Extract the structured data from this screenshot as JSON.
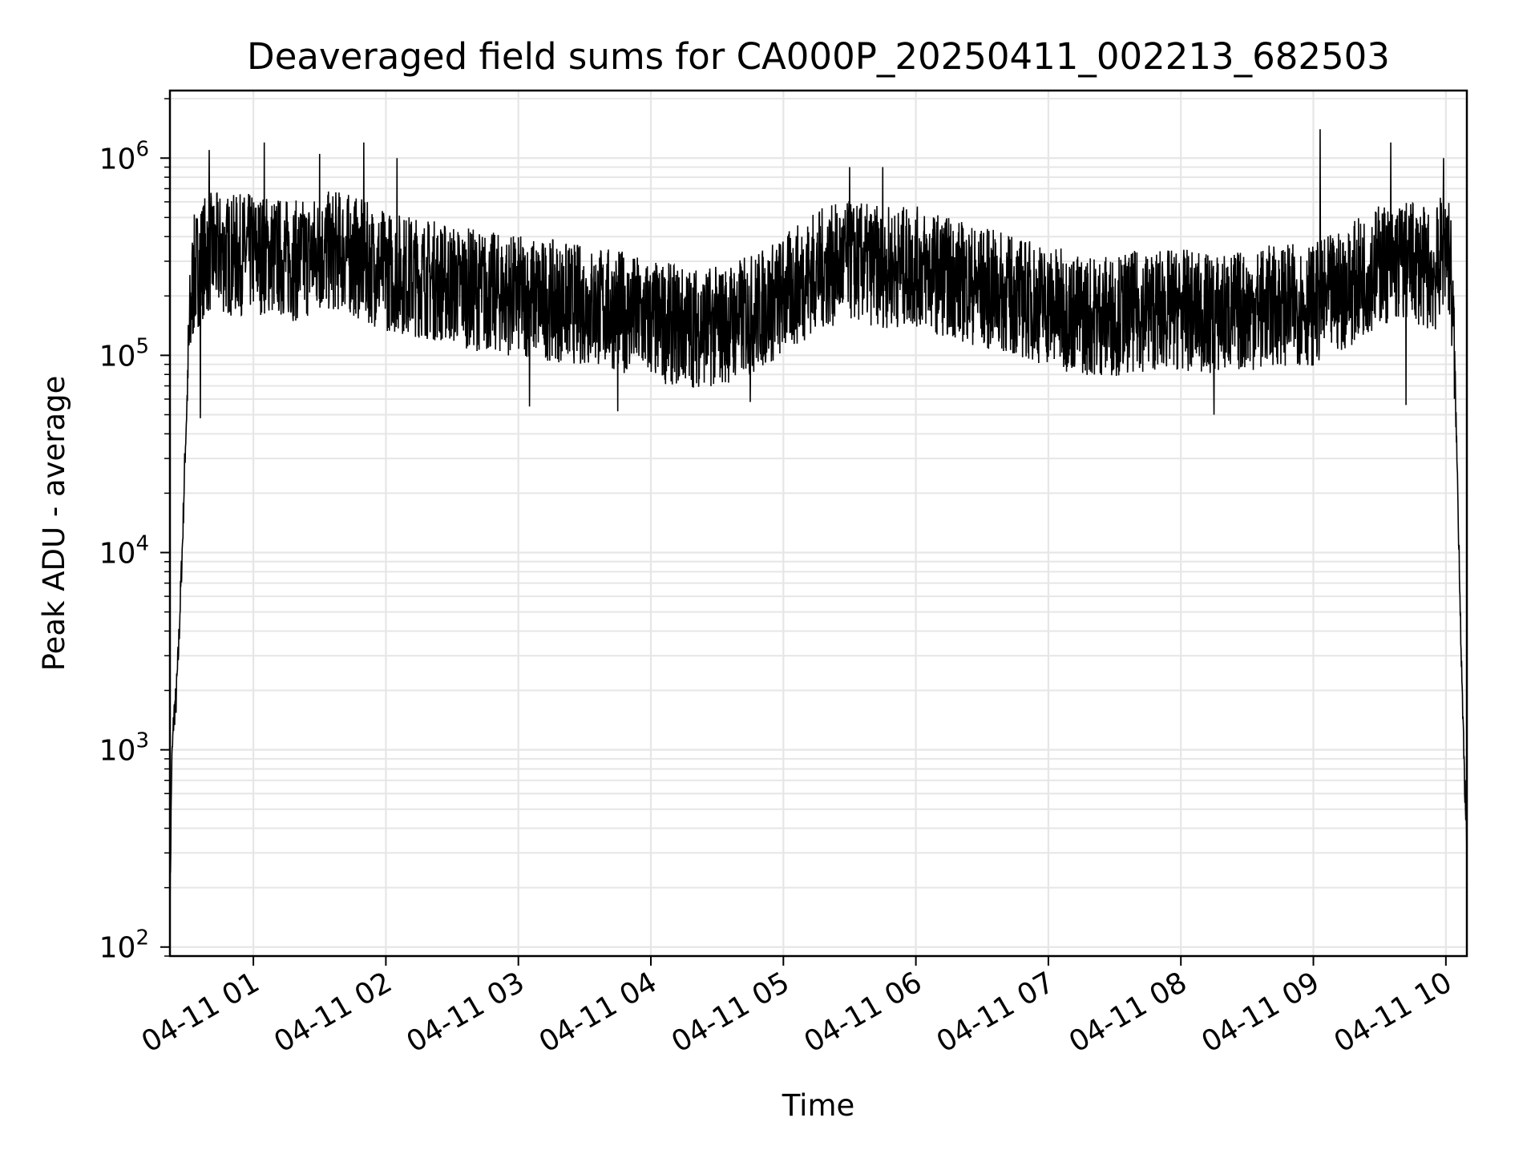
{
  "chart_data": {
    "type": "line",
    "title": "Deaveraged field sums for CA000P_20250411_002213_682503",
    "xlabel": "Time",
    "ylabel": "Peak ADU - average",
    "yscale": "log",
    "ylim": [
      90,
      2200000
    ],
    "xlim": [
      "2025-04-11T00:22:13",
      "2025-04-11T10:09:30"
    ],
    "grid": true,
    "x_ticks": [
      {
        "time": "2025-04-11T01:00:00",
        "label": "04-11 01"
      },
      {
        "time": "2025-04-11T02:00:00",
        "label": "04-11 02"
      },
      {
        "time": "2025-04-11T03:00:00",
        "label": "04-11 03"
      },
      {
        "time": "2025-04-11T04:00:00",
        "label": "04-11 04"
      },
      {
        "time": "2025-04-11T05:00:00",
        "label": "04-11 05"
      },
      {
        "time": "2025-04-11T06:00:00",
        "label": "04-11 06"
      },
      {
        "time": "2025-04-11T07:00:00",
        "label": "04-11 07"
      },
      {
        "time": "2025-04-11T08:00:00",
        "label": "04-11 08"
      },
      {
        "time": "2025-04-11T09:00:00",
        "label": "04-11 09"
      },
      {
        "time": "2025-04-11T10:00:00",
        "label": "04-11 10"
      }
    ],
    "y_ticks": [
      {
        "value": 100,
        "base": "10",
        "exp": "2"
      },
      {
        "value": 1000,
        "base": "10",
        "exp": "3"
      },
      {
        "value": 10000,
        "base": "10",
        "exp": "4"
      },
      {
        "value": 100000,
        "base": "10",
        "exp": "5"
      },
      {
        "value": 1000000,
        "base": "10",
        "exp": "6"
      }
    ],
    "series": [
      {
        "color": "#000000",
        "x": [
          "2025-04-11T00:22:13",
          "2025-04-11T00:23:00",
          "2025-04-11T00:24:00",
          "2025-04-11T00:25:00",
          "2025-04-11T00:26:00",
          "2025-04-11T00:27:00",
          "2025-04-11T00:28:00",
          "2025-04-11T00:29:00",
          "2025-04-11T00:30:00",
          "2025-04-11T00:31:00",
          "2025-04-11T00:32:00",
          "2025-04-11T00:33:00",
          "2025-04-11T00:34:00",
          "2025-04-11T00:35:00",
          "2025-04-11T00:36:00",
          "2025-04-11T00:38:00",
          "2025-04-11T00:40:00",
          "2025-04-11T00:45:00",
          "2025-04-11T00:50:00",
          "2025-04-11T01:00:00",
          "2025-04-11T01:10:00",
          "2025-04-11T01:20:00",
          "2025-04-11T01:30:00",
          "2025-04-11T01:40:00",
          "2025-04-11T01:50:00",
          "2025-04-11T02:00:00",
          "2025-04-11T02:15:00",
          "2025-04-11T02:30:00",
          "2025-04-11T02:45:00",
          "2025-04-11T03:00:00",
          "2025-04-11T03:15:00",
          "2025-04-11T03:30:00",
          "2025-04-11T03:45:00",
          "2025-04-11T04:00:00",
          "2025-04-11T04:15:00",
          "2025-04-11T04:30:00",
          "2025-04-11T04:45:00",
          "2025-04-11T05:00:00",
          "2025-04-11T05:15:00",
          "2025-04-11T05:30:00",
          "2025-04-11T05:45:00",
          "2025-04-11T06:00:00",
          "2025-04-11T06:15:00",
          "2025-04-11T06:30:00",
          "2025-04-11T06:45:00",
          "2025-04-11T07:00:00",
          "2025-04-11T07:15:00",
          "2025-04-11T07:30:00",
          "2025-04-11T07:45:00",
          "2025-04-11T08:00:00",
          "2025-04-11T08:15:00",
          "2025-04-11T08:30:00",
          "2025-04-11T08:45:00",
          "2025-04-11T09:00:00",
          "2025-04-11T09:15:00",
          "2025-04-11T09:30:00",
          "2025-04-11T09:45:00",
          "2025-04-11T09:55:00",
          "2025-04-11T10:00:00",
          "2025-04-11T10:02:00",
          "2025-04-11T10:04:00",
          "2025-04-11T10:05:00",
          "2025-04-11T10:06:00",
          "2025-04-11T10:07:00",
          "2025-04-11T10:08:00",
          "2025-04-11T10:09:00",
          "2025-04-11T10:09:30"
        ],
        "y": [
          150,
          800,
          1500,
          1800,
          3000,
          6000,
          12000,
          30000,
          60000,
          120000,
          200000,
          250000,
          270000,
          280000,
          300000,
          320000,
          330000,
          330000,
          320000,
          330000,
          320000,
          300000,
          330000,
          340000,
          300000,
          270000,
          250000,
          230000,
          210000,
          200000,
          190000,
          180000,
          170000,
          150000,
          140000,
          140000,
          160000,
          200000,
          270000,
          300000,
          280000,
          280000,
          250000,
          220000,
          200000,
          180000,
          160000,
          160000,
          170000,
          170000,
          160000,
          170000,
          180000,
          180000,
          220000,
          290000,
          300000,
          260000,
          380000,
          300000,
          90000,
          30000,
          10000,
          3000,
          1000,
          500,
          300
        ]
      }
    ],
    "minor_spikes": [
      {
        "x": "2025-04-11T00:40:00",
        "y": 1100000
      },
      {
        "x": "2025-04-11T01:05:00",
        "y": 1200000
      },
      {
        "x": "2025-04-11T01:30:00",
        "y": 1050000
      },
      {
        "x": "2025-04-11T01:50:00",
        "y": 1200000
      },
      {
        "x": "2025-04-11T02:05:00",
        "y": 1000000
      },
      {
        "x": "2025-04-11T05:30:00",
        "y": 900000
      },
      {
        "x": "2025-04-11T05:45:00",
        "y": 900000
      },
      {
        "x": "2025-04-11T09:03:00",
        "y": 1400000
      },
      {
        "x": "2025-04-11T09:35:00",
        "y": 1200000
      },
      {
        "x": "2025-04-11T09:59:00",
        "y": 1000000
      },
      {
        "x": "2025-04-11T00:36:00",
        "y": 48000
      },
      {
        "x": "2025-04-11T03:05:00",
        "y": 55000
      },
      {
        "x": "2025-04-11T03:45:00",
        "y": 52000
      },
      {
        "x": "2025-04-11T04:45:00",
        "y": 58000
      },
      {
        "x": "2025-04-11T08:15:00",
        "y": 50000
      },
      {
        "x": "2025-04-11T09:42:00",
        "y": 56000
      }
    ]
  }
}
